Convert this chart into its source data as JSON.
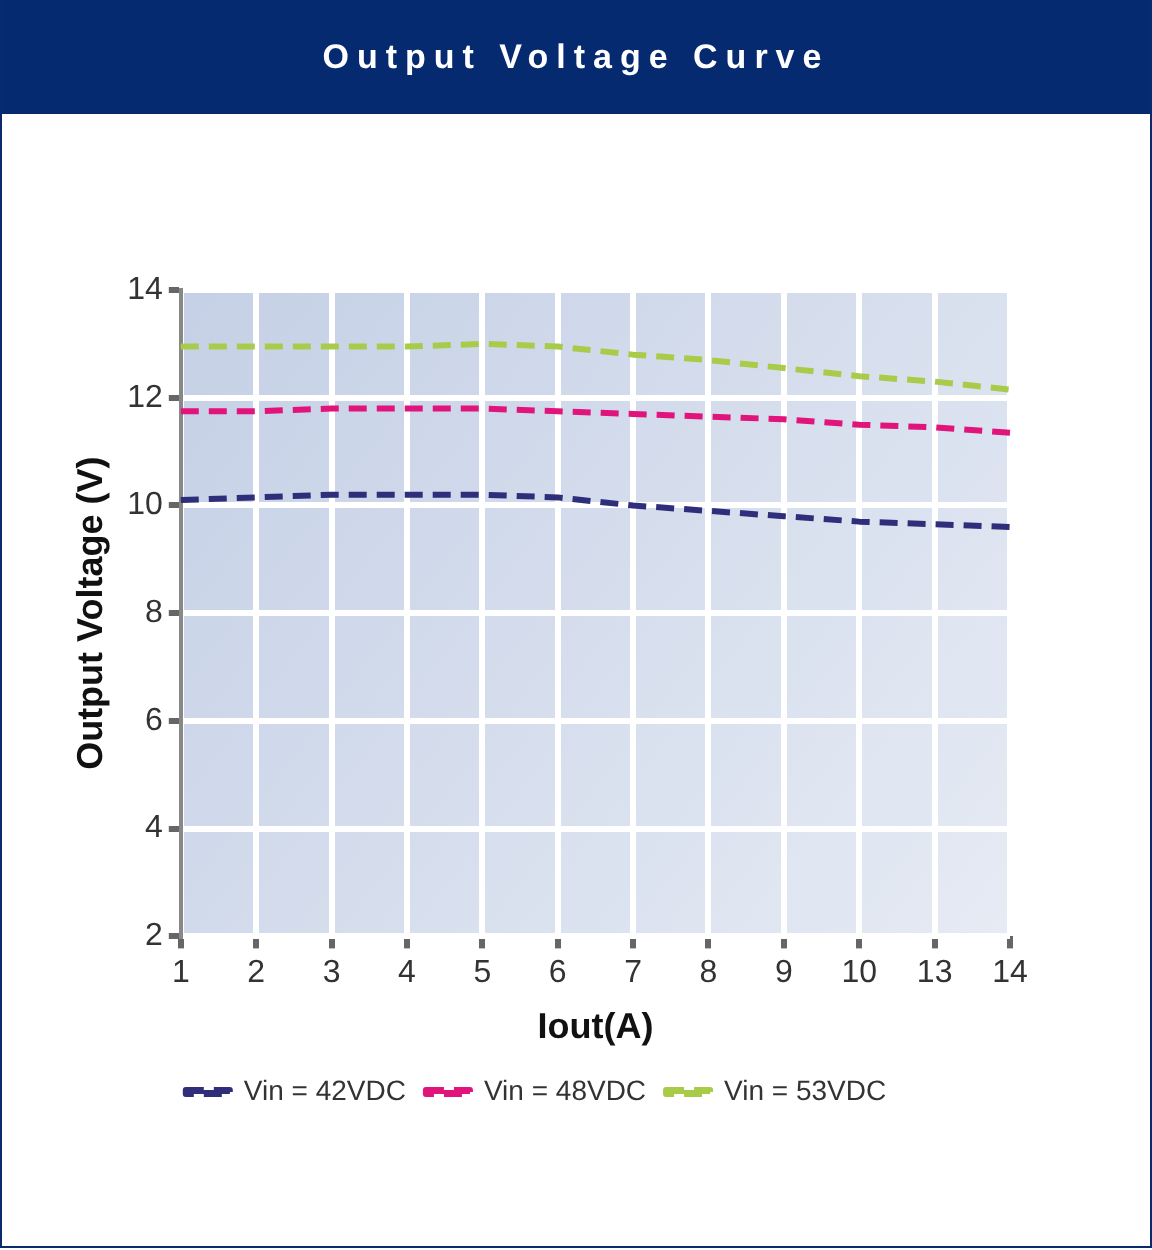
{
  "chart_data": {
    "type": "line",
    "title": "Output Voltage Curve",
    "xlabel": "Iout(A)",
    "ylabel": "Output Voltage (V)",
    "categories": [
      "1",
      "2",
      "3",
      "4",
      "5",
      "6",
      "7",
      "8",
      "9",
      "10",
      "13",
      "14"
    ],
    "series": [
      {
        "name": "Vin = 42VDC",
        "color": "#2e2e7a",
        "values": [
          10.1,
          10.15,
          10.2,
          10.2,
          10.2,
          10.15,
          10.0,
          9.9,
          9.8,
          9.7,
          9.65,
          9.6
        ]
      },
      {
        "name": "Vin = 48VDC",
        "color": "#e0147a",
        "values": [
          11.75,
          11.75,
          11.8,
          11.8,
          11.8,
          11.75,
          11.7,
          11.65,
          11.6,
          11.5,
          11.45,
          11.35
        ]
      },
      {
        "name": "Vin = 53VDC",
        "color": "#a8cc4a",
        "values": [
          12.95,
          12.95,
          12.95,
          12.95,
          13.0,
          12.95,
          12.8,
          12.7,
          12.55,
          12.4,
          12.3,
          12.15
        ]
      }
    ],
    "ylim": [
      2,
      14
    ],
    "yticks": [
      2,
      4,
      6,
      8,
      10,
      12,
      14
    ],
    "grid": true,
    "legend": "bottom",
    "line_style": "dashed",
    "marker": "none"
  }
}
